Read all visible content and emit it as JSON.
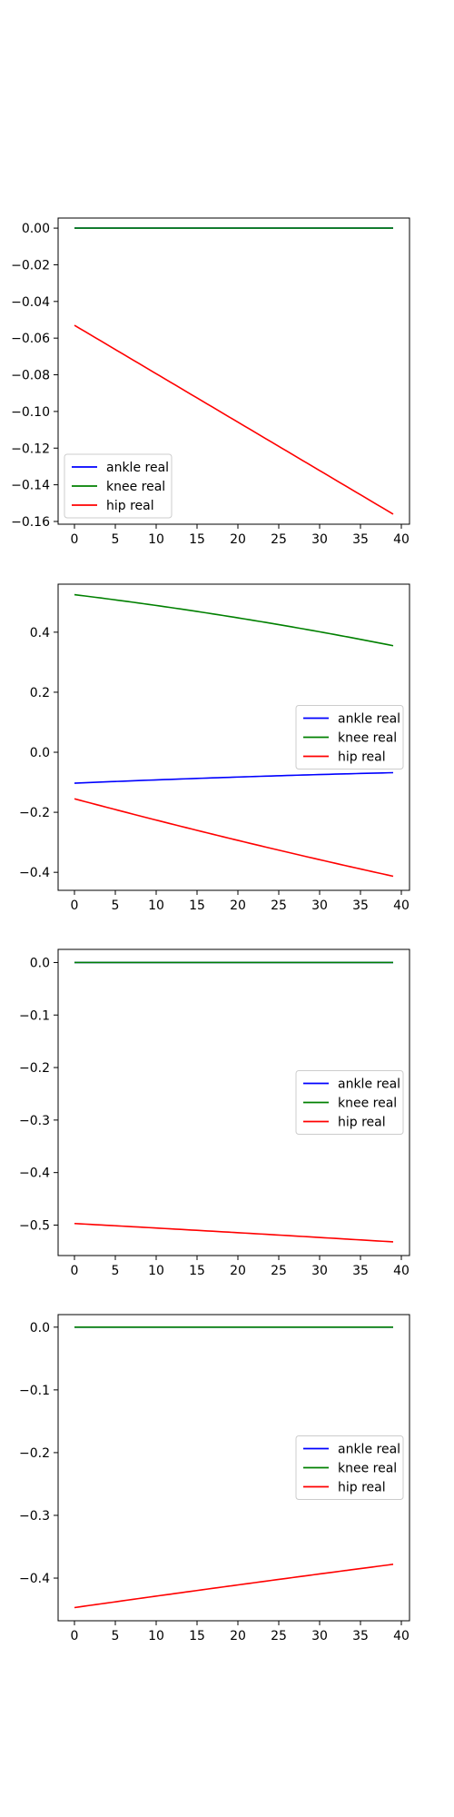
{
  "colors": {
    "ankle": "#0000ff",
    "knee": "#008000",
    "hip": "#ff0000",
    "axes": "#000000",
    "background": "#ffffff"
  },
  "chart_data": [
    {
      "type": "line",
      "xlim": [
        -2,
        41
      ],
      "ylim": [
        -0.1615,
        0.0055
      ],
      "xticks": [
        0,
        5,
        10,
        15,
        20,
        25,
        30,
        35,
        40
      ],
      "yticks": [
        0.0,
        -0.02,
        -0.04,
        -0.06,
        -0.08,
        -0.1,
        -0.12,
        -0.14,
        -0.16
      ],
      "ytick_labels": [
        "0.00",
        "−0.02",
        "−0.04",
        "−0.06",
        "−0.08",
        "−0.10",
        "−0.12",
        "−0.14",
        "−0.16"
      ],
      "grid": false,
      "legend_position": "lower-left",
      "series": [
        {
          "name": "ankle real",
          "color_key": "ankle",
          "x_start": 0,
          "x_end": 39,
          "y_start": 0.0,
          "y_end": 0.0,
          "curve": 0
        },
        {
          "name": "knee real",
          "color_key": "knee",
          "x_start": 0,
          "x_end": 39,
          "y_start": 0.0,
          "y_end": 0.0,
          "curve": 0
        },
        {
          "name": "hip real",
          "color_key": "hip",
          "x_start": 0,
          "x_end": 39,
          "y_start": -0.053,
          "y_end": -0.156,
          "curve": 0
        }
      ]
    },
    {
      "type": "line",
      "xlim": [
        -2,
        41
      ],
      "ylim": [
        -0.46,
        0.56
      ],
      "xticks": [
        0,
        5,
        10,
        15,
        20,
        25,
        30,
        35,
        40
      ],
      "yticks": [
        0.4,
        0.2,
        0.0,
        -0.2,
        -0.4
      ],
      "ytick_labels": [
        "0.4",
        "0.2",
        "0.0",
        "−0.2",
        "−0.4"
      ],
      "grid": false,
      "legend_position": "center-right",
      "series": [
        {
          "name": "ankle real",
          "color_key": "ankle",
          "x_start": 0,
          "x_end": 39,
          "y_start": -0.103,
          "y_end": -0.068,
          "curve": 0.01
        },
        {
          "name": "knee real",
          "color_key": "knee",
          "x_start": 0,
          "x_end": 39,
          "y_start": 0.525,
          "y_end": 0.355,
          "curve": 0.04
        },
        {
          "name": "hip real",
          "color_key": "hip",
          "x_start": 0,
          "x_end": 39,
          "y_start": -0.155,
          "y_end": -0.413,
          "curve": -0.025
        }
      ]
    },
    {
      "type": "line",
      "xlim": [
        -2,
        41
      ],
      "ylim": [
        -0.558,
        0.025
      ],
      "xticks": [
        0,
        5,
        10,
        15,
        20,
        25,
        30,
        35,
        40
      ],
      "yticks": [
        0.0,
        -0.1,
        -0.2,
        -0.3,
        -0.4,
        -0.5
      ],
      "ytick_labels": [
        "0.0",
        "−0.1",
        "−0.2",
        "−0.3",
        "−0.4",
        "−0.5"
      ],
      "grid": false,
      "legend_position": "center-right",
      "series": [
        {
          "name": "ankle real",
          "color_key": "ankle",
          "x_start": 0,
          "x_end": 39,
          "y_start": 0.0,
          "y_end": 0.0,
          "curve": 0
        },
        {
          "name": "knee real",
          "color_key": "knee",
          "x_start": 0,
          "x_end": 39,
          "y_start": 0.0,
          "y_end": 0.0,
          "curve": 0
        },
        {
          "name": "hip real",
          "color_key": "hip",
          "x_start": 0,
          "x_end": 39,
          "y_start": -0.497,
          "y_end": -0.532,
          "curve": 0.002
        }
      ]
    },
    {
      "type": "line",
      "xlim": [
        -2,
        41
      ],
      "ylim": [
        -0.468,
        0.02
      ],
      "xticks": [
        0,
        5,
        10,
        15,
        20,
        25,
        30,
        35,
        40
      ],
      "yticks": [
        0.0,
        -0.1,
        -0.2,
        -0.3,
        -0.4
      ],
      "ytick_labels": [
        "0.0",
        "−0.1",
        "−0.2",
        "−0.3",
        "−0.4"
      ],
      "grid": false,
      "legend_position": "center-right",
      "series": [
        {
          "name": "ankle real",
          "color_key": "ankle",
          "x_start": 0,
          "x_end": 39,
          "y_start": 0.0,
          "y_end": 0.0,
          "curve": 0
        },
        {
          "name": "knee real",
          "color_key": "knee",
          "x_start": 0,
          "x_end": 39,
          "y_start": 0.0,
          "y_end": 0.0,
          "curve": 0
        },
        {
          "name": "hip real",
          "color_key": "hip",
          "x_start": 0,
          "x_end": 39,
          "y_start": -0.447,
          "y_end": -0.378,
          "curve": 0.003
        }
      ]
    }
  ]
}
